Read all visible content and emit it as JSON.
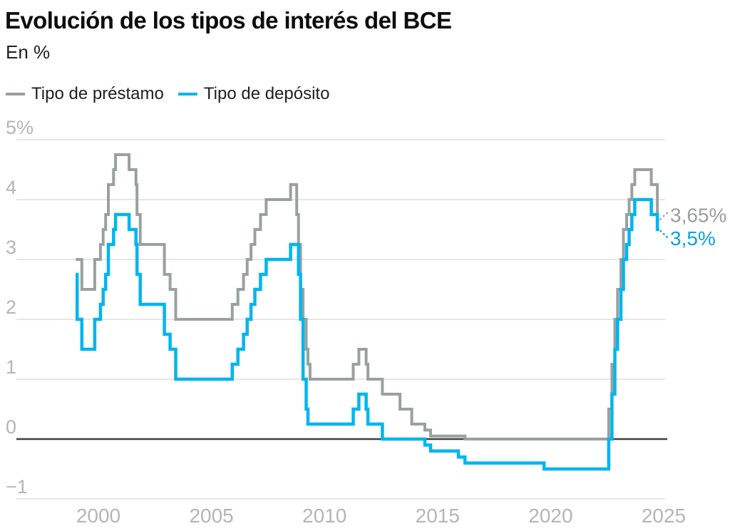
{
  "header": {
    "title": "Evolución de los tipos de interés del BCE",
    "subtitle": "En %"
  },
  "legend": [
    {
      "label": "Tipo de préstamo",
      "color": "#9aa0a0"
    },
    {
      "label": "Tipo de depósito",
      "color": "#00b5ef"
    }
  ],
  "colors": {
    "grid_line": "#e7e7e7",
    "zero_line": "#3f4040",
    "axis_text": "#b3b6b6",
    "title_text": "#0d0d0d"
  },
  "chart_data": {
    "type": "line",
    "step": true,
    "title": "Evolución de los tipos de interés del BCE",
    "ylabel": "En %",
    "xlabel": "",
    "grid": true,
    "legend_position": "top-left",
    "xlim": [
      1999.0,
      2024.8
    ],
    "ylim": [
      -1,
      5
    ],
    "x_ticks": {
      "values": [
        2000,
        2005,
        2010,
        2015,
        2020,
        2025
      ],
      "labels": [
        "2000",
        "2005",
        "2010",
        "2015",
        "2020",
        "2025"
      ]
    },
    "y_ticks": {
      "values": [
        5,
        4,
        3,
        2,
        1,
        0,
        -1
      ],
      "labels": [
        "5%",
        "4",
        "3",
        "2",
        "1",
        "0",
        "−1"
      ]
    },
    "baseline_value": 0,
    "series": [
      {
        "name": "Tipo de préstamo",
        "color": "#9aa0a0",
        "end_label": "3,65%",
        "end_label_color": "#9b9e9e",
        "points": [
          [
            1999.0,
            3.0
          ],
          [
            1999.27,
            2.5
          ],
          [
            1999.84,
            3.0
          ],
          [
            2000.09,
            3.25
          ],
          [
            2000.21,
            3.5
          ],
          [
            2000.32,
            3.75
          ],
          [
            2000.44,
            4.25
          ],
          [
            2000.67,
            4.5
          ],
          [
            2000.76,
            4.75
          ],
          [
            2001.36,
            4.5
          ],
          [
            2001.66,
            4.25
          ],
          [
            2001.71,
            3.75
          ],
          [
            2001.85,
            3.25
          ],
          [
            2002.92,
            2.75
          ],
          [
            2003.17,
            2.5
          ],
          [
            2003.42,
            2.0
          ],
          [
            2005.92,
            2.25
          ],
          [
            2006.17,
            2.5
          ],
          [
            2006.42,
            2.75
          ],
          [
            2006.58,
            3.0
          ],
          [
            2006.75,
            3.25
          ],
          [
            2006.92,
            3.5
          ],
          [
            2007.17,
            3.75
          ],
          [
            2007.42,
            4.0
          ],
          [
            2008.5,
            4.25
          ],
          [
            2008.77,
            3.75
          ],
          [
            2008.85,
            3.25
          ],
          [
            2008.94,
            2.5
          ],
          [
            2009.05,
            2.0
          ],
          [
            2009.19,
            1.5
          ],
          [
            2009.27,
            1.25
          ],
          [
            2009.36,
            1.0
          ],
          [
            2011.27,
            1.25
          ],
          [
            2011.52,
            1.5
          ],
          [
            2011.84,
            1.25
          ],
          [
            2011.92,
            1.0
          ],
          [
            2012.56,
            0.75
          ],
          [
            2013.34,
            0.5
          ],
          [
            2013.86,
            0.25
          ],
          [
            2014.44,
            0.15
          ],
          [
            2014.69,
            0.05
          ],
          [
            2016.21,
            0.0
          ],
          [
            2022.57,
            0.5
          ],
          [
            2022.71,
            1.25
          ],
          [
            2022.84,
            2.0
          ],
          [
            2022.96,
            2.5
          ],
          [
            2023.11,
            3.0
          ],
          [
            2023.22,
            3.5
          ],
          [
            2023.36,
            3.75
          ],
          [
            2023.47,
            4.0
          ],
          [
            2023.59,
            4.25
          ],
          [
            2023.72,
            4.5
          ],
          [
            2024.45,
            4.25
          ],
          [
            2024.72,
            3.65
          ]
        ]
      },
      {
        "name": "Tipo de depósito",
        "color": "#00b5ef",
        "end_label": "3,5%",
        "end_label_color": "#0aa3dc",
        "points": [
          [
            1999.0,
            2.75
          ],
          [
            1999.06,
            2.0
          ],
          [
            1999.27,
            1.5
          ],
          [
            1999.84,
            2.0
          ],
          [
            2000.09,
            2.25
          ],
          [
            2000.21,
            2.5
          ],
          [
            2000.32,
            2.75
          ],
          [
            2000.44,
            3.25
          ],
          [
            2000.67,
            3.5
          ],
          [
            2000.76,
            3.75
          ],
          [
            2001.36,
            3.5
          ],
          [
            2001.66,
            3.25
          ],
          [
            2001.71,
            2.75
          ],
          [
            2001.85,
            2.25
          ],
          [
            2002.92,
            1.75
          ],
          [
            2003.17,
            1.5
          ],
          [
            2003.42,
            1.0
          ],
          [
            2005.92,
            1.25
          ],
          [
            2006.17,
            1.5
          ],
          [
            2006.42,
            1.75
          ],
          [
            2006.58,
            2.0
          ],
          [
            2006.75,
            2.25
          ],
          [
            2006.92,
            2.5
          ],
          [
            2007.17,
            2.75
          ],
          [
            2007.42,
            3.0
          ],
          [
            2008.5,
            3.25
          ],
          [
            2008.85,
            2.75
          ],
          [
            2008.94,
            2.0
          ],
          [
            2009.05,
            1.0
          ],
          [
            2009.19,
            0.5
          ],
          [
            2009.27,
            0.25
          ],
          [
            2011.27,
            0.5
          ],
          [
            2011.52,
            0.75
          ],
          [
            2011.84,
            0.5
          ],
          [
            2011.92,
            0.25
          ],
          [
            2012.56,
            0.0
          ],
          [
            2014.44,
            -0.1
          ],
          [
            2014.69,
            -0.2
          ],
          [
            2015.92,
            -0.3
          ],
          [
            2016.21,
            -0.4
          ],
          [
            2019.71,
            -0.5
          ],
          [
            2022.57,
            0.0
          ],
          [
            2022.71,
            0.75
          ],
          [
            2022.84,
            1.5
          ],
          [
            2022.96,
            2.0
          ],
          [
            2023.11,
            2.5
          ],
          [
            2023.22,
            3.0
          ],
          [
            2023.36,
            3.25
          ],
          [
            2023.47,
            3.5
          ],
          [
            2023.59,
            3.75
          ],
          [
            2023.72,
            4.0
          ],
          [
            2024.45,
            3.75
          ],
          [
            2024.72,
            3.5
          ]
        ]
      }
    ]
  }
}
